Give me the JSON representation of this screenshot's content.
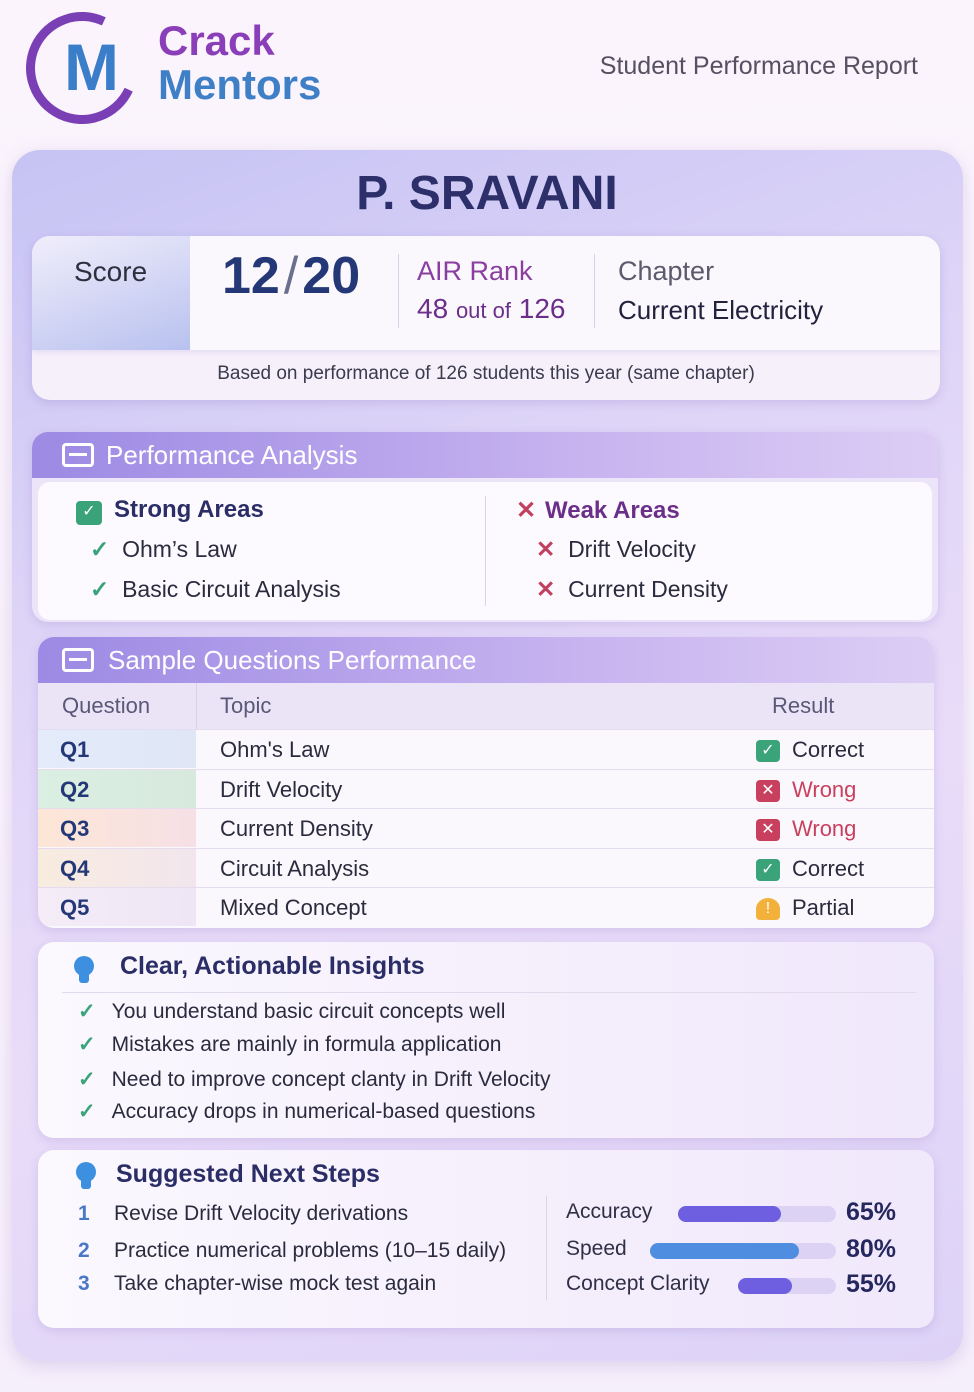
{
  "brand": {
    "logo_letter": "M",
    "line1": "Crack",
    "line2": "Mentors"
  },
  "header": {
    "title": "Student Performance Report"
  },
  "student": {
    "name": "P. SRAVANI"
  },
  "score": {
    "label": "Score",
    "obtained": "12",
    "slash": "/",
    "total": "20",
    "air_label": "AIR Rank",
    "air_rank": "48",
    "air_out_of": "out of",
    "air_total": "126",
    "chapter_label": "Chapter",
    "chapter": "Current Electricity",
    "note": "Based on performance of 126 students this year (same chapter)"
  },
  "performance": {
    "title": "Performance Analysis",
    "strong_title": "Strong Areas",
    "strong": [
      "Ohm’s Law",
      "Basic Circuit Analysis"
    ],
    "weak_title": "Weak Areas",
    "weak": [
      "Drift Velocity",
      "Current Density"
    ]
  },
  "questions": {
    "title": "Sample Questions Performance",
    "columns": [
      "Question",
      "Topic",
      "Result"
    ],
    "rows": [
      {
        "q": "Q1",
        "topic": "Ohm's Law",
        "result": "Correct",
        "status": "correct"
      },
      {
        "q": "Q2",
        "topic": "Drift Velocity",
        "result": "Wrong",
        "status": "wrong"
      },
      {
        "q": "Q3",
        "topic": "Current Density",
        "result": "Wrong",
        "status": "wrong"
      },
      {
        "q": "Q4",
        "topic": "Circuit Analysis",
        "result": "Correct",
        "status": "correct"
      },
      {
        "q": "Q5",
        "topic": "Mixed Concept",
        "result": "Partial",
        "status": "partial"
      }
    ]
  },
  "insights": {
    "title": "Clear, Actionable Insights",
    "items": [
      "You understand basic circuit concepts well",
      "Mistakes are mainly in formula application",
      "Need to improve concept clanty in Drift Velocity",
      "Accuracy drops in numerical-based questions"
    ]
  },
  "next_steps": {
    "title": "Suggested Next Steps",
    "steps": [
      {
        "n": "1",
        "text": "Revise Drift Velocity derivations"
      },
      {
        "n": "2",
        "text": "Practice numerical problems (10–15 daily)"
      },
      {
        "n": "3",
        "text": "Take chapter-wise mock test again"
      }
    ],
    "metrics": [
      {
        "label": "Accuracy",
        "percent": 65,
        "display": "65%",
        "color": "#6d5fe0"
      },
      {
        "label": "Speed",
        "percent": 80,
        "display": "80%",
        "color": "#4f8de0"
      },
      {
        "label": "Concept Clarity",
        "percent": 55,
        "display": "55%",
        "color": "#6d5fe0"
      }
    ]
  },
  "colors": {
    "correct": "#3aa37a",
    "wrong": "#c9405f",
    "partial": "#f2b13a"
  }
}
